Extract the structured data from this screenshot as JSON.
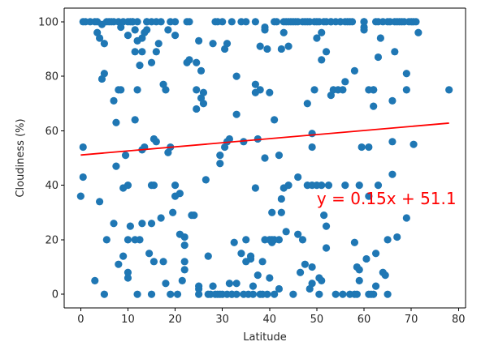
{
  "chart_data": {
    "type": "scatter",
    "title": "",
    "xlabel": "Latitude",
    "ylabel": "Cloudiness (%)",
    "xlim": [
      -3.5,
      81.5
    ],
    "ylim": [
      -5,
      105
    ],
    "xticks": [
      0,
      10,
      20,
      30,
      40,
      50,
      60,
      70,
      80
    ],
    "yticks": [
      0,
      20,
      40,
      60,
      80,
      100
    ],
    "grid": false,
    "colors": {
      "points": "#1f77b4",
      "regression": "#ff0000",
      "annotation": "#ff0000",
      "axes": "#000000"
    },
    "series": [
      {
        "points": [
          [
            0,
            36
          ],
          [
            0.5,
            43
          ],
          [
            0.5,
            54
          ],
          [
            0.5,
            100
          ],
          [
            1,
            100
          ],
          [
            2,
            100
          ],
          [
            3,
            100
          ],
          [
            3,
            5
          ],
          [
            3.5,
            100
          ],
          [
            3.5,
            96
          ],
          [
            4,
            94
          ],
          [
            4,
            34
          ],
          [
            4.5,
            99
          ],
          [
            4.5,
            79
          ],
          [
            5,
            81
          ],
          [
            5,
            0
          ],
          [
            5,
            92
          ],
          [
            5.5,
            20
          ],
          [
            5.5,
            100
          ],
          [
            6,
            100
          ],
          [
            6.5,
            100
          ],
          [
            7,
            71
          ],
          [
            7,
            26
          ],
          [
            7,
            100
          ],
          [
            7.5,
            47
          ],
          [
            7.5,
            63
          ],
          [
            8,
            11
          ],
          [
            8,
            75
          ],
          [
            8,
            100
          ],
          [
            8.5,
            98
          ],
          [
            8.5,
            75
          ],
          [
            9,
            100
          ],
          [
            9,
            14
          ],
          [
            9,
            39
          ],
          [
            9.5,
            51
          ],
          [
            10,
            6
          ],
          [
            10,
            8
          ],
          [
            10,
            40
          ],
          [
            10,
            20
          ],
          [
            10,
            95
          ],
          [
            10,
            100
          ],
          [
            10.5,
            100
          ],
          [
            10.5,
            25
          ],
          [
            11,
            100
          ],
          [
            11,
            100
          ],
          [
            11.5,
            64
          ],
          [
            11.5,
            97
          ],
          [
            11.5,
            89
          ],
          [
            11.5,
            20
          ],
          [
            12,
            0
          ],
          [
            12,
            75
          ],
          [
            12,
            93
          ],
          [
            12,
            100
          ],
          [
            12.5,
            20
          ],
          [
            12.5,
            84
          ],
          [
            13,
            94
          ],
          [
            13,
            26
          ],
          [
            13,
            53
          ],
          [
            13,
            89
          ],
          [
            13.5,
            54
          ],
          [
            13.5,
            96
          ],
          [
            14,
            97
          ],
          [
            14,
            100
          ],
          [
            14,
            100
          ],
          [
            14.5,
            15
          ],
          [
            15,
            26
          ],
          [
            15,
            40
          ],
          [
            15,
            0
          ],
          [
            15,
            85
          ],
          [
            15,
            100
          ],
          [
            15.5,
            57
          ],
          [
            15.5,
            12
          ],
          [
            15.5,
            40
          ],
          [
            16,
            56
          ],
          [
            16,
            89
          ],
          [
            16,
            100
          ],
          [
            16.5,
            92
          ],
          [
            17,
            100
          ],
          [
            17,
            28
          ],
          [
            17.5,
            77
          ],
          [
            17.5,
            12
          ],
          [
            18,
            75
          ],
          [
            18,
            4
          ],
          [
            18.5,
            52
          ],
          [
            18.5,
            97
          ],
          [
            19,
            54
          ],
          [
            19,
            0
          ],
          [
            19,
            100
          ],
          [
            19.5,
            30
          ],
          [
            20,
            36
          ],
          [
            20,
            40
          ],
          [
            20,
            95
          ],
          [
            20,
            100
          ],
          [
            20.5,
            0
          ],
          [
            21,
            22
          ],
          [
            21,
            37
          ],
          [
            21.5,
            5
          ],
          [
            22,
            21
          ],
          [
            22,
            18
          ],
          [
            22,
            12
          ],
          [
            22,
            9
          ],
          [
            22.5,
            85
          ],
          [
            22.5,
            100
          ],
          [
            23,
            86
          ],
          [
            23,
            100
          ],
          [
            23.5,
            29
          ],
          [
            24,
            29
          ],
          [
            24.5,
            68
          ],
          [
            24.5,
            75
          ],
          [
            24.5,
            85
          ],
          [
            25,
            0
          ],
          [
            25,
            2
          ],
          [
            25,
            3
          ],
          [
            25,
            93
          ],
          [
            25.5,
            82
          ],
          [
            25.5,
            72
          ],
          [
            26,
            74
          ],
          [
            26,
            70
          ],
          [
            26.5,
            42
          ],
          [
            27,
            14
          ],
          [
            27,
            0
          ],
          [
            27.5,
            0
          ],
          [
            28,
            3
          ],
          [
            28,
            92
          ],
          [
            28.5,
            0
          ],
          [
            28.5,
            100
          ],
          [
            29,
            0
          ],
          [
            29,
            100
          ],
          [
            29.5,
            48
          ],
          [
            29.5,
            51
          ],
          [
            29.5,
            0
          ],
          [
            30,
            100
          ],
          [
            30,
            0
          ],
          [
            30.5,
            54
          ],
          [
            30.5,
            90
          ],
          [
            31,
            0
          ],
          [
            31,
            56
          ],
          [
            31,
            92
          ],
          [
            31.5,
            57
          ],
          [
            31.5,
            4
          ],
          [
            32,
            0
          ],
          [
            32,
            100
          ],
          [
            32,
            0
          ],
          [
            32.5,
            19
          ],
          [
            33,
            80
          ],
          [
            33,
            66
          ],
          [
            33,
            4
          ],
          [
            33,
            0
          ],
          [
            34,
            15
          ],
          [
            34,
            100
          ],
          [
            34.5,
            0
          ],
          [
            34.5,
            56
          ],
          [
            35,
            20
          ],
          [
            35,
            12
          ],
          [
            35,
            100
          ],
          [
            35.5,
            0
          ],
          [
            36,
            13
          ],
          [
            36,
            14
          ],
          [
            36.5,
            0
          ],
          [
            36.5,
            3
          ],
          [
            37,
            77
          ],
          [
            37,
            74
          ],
          [
            37,
            39
          ],
          [
            37,
            100
          ],
          [
            37.5,
            7
          ],
          [
            37.5,
            57
          ],
          [
            38,
            0
          ],
          [
            38,
            75
          ],
          [
            38,
            91
          ],
          [
            38.5,
            12
          ],
          [
            38.5,
            0
          ],
          [
            39,
            97
          ],
          [
            39,
            98
          ],
          [
            39,
            20
          ],
          [
            39,
            50
          ],
          [
            39.5,
            0
          ],
          [
            39.5,
            90
          ],
          [
            40,
            74
          ],
          [
            40,
            20
          ],
          [
            40,
            6
          ],
          [
            40.5,
            30
          ],
          [
            40.5,
            19
          ],
          [
            40.5,
            20
          ],
          [
            41,
            64
          ],
          [
            41,
            0
          ],
          [
            41,
            20
          ],
          [
            41,
            100
          ],
          [
            41.5,
            100
          ],
          [
            42,
            20
          ],
          [
            42,
            51
          ],
          [
            42,
            2
          ],
          [
            42.5,
            30
          ],
          [
            42.5,
            35
          ],
          [
            42.5,
            90
          ],
          [
            43,
            96
          ],
          [
            43,
            100
          ],
          [
            43,
            39
          ],
          [
            43.5,
            23
          ],
          [
            43.5,
            100
          ],
          [
            44,
            91
          ],
          [
            44,
            40
          ],
          [
            44,
            100
          ],
          [
            44.5,
            100
          ],
          [
            45,
            0
          ],
          [
            45,
            100
          ],
          [
            45.5,
            100
          ],
          [
            46,
            22
          ],
          [
            46,
            43
          ],
          [
            46,
            100
          ],
          [
            46.5,
            8
          ],
          [
            47,
            100
          ],
          [
            47,
            20
          ],
          [
            47.5,
            100
          ],
          [
            47.5,
            11
          ],
          [
            48,
            40
          ],
          [
            48,
            70
          ],
          [
            48,
            100
          ],
          [
            48.5,
            2
          ],
          [
            48.5,
            100
          ],
          [
            49,
            40
          ],
          [
            49,
            4
          ],
          [
            49,
            54
          ],
          [
            49,
            59
          ],
          [
            49,
            10
          ],
          [
            49.5,
            75
          ],
          [
            49.5,
            100
          ],
          [
            50,
            100
          ],
          [
            50,
            40
          ],
          [
            50,
            94
          ],
          [
            50.5,
            100
          ],
          [
            50.5,
            6
          ],
          [
            50.5,
            0
          ],
          [
            51,
            86
          ],
          [
            51,
            96
          ],
          [
            51,
            40
          ],
          [
            51,
            5
          ],
          [
            51.5,
            100
          ],
          [
            51.5,
            29
          ],
          [
            52,
            17
          ],
          [
            52,
            89
          ],
          [
            52,
            25
          ],
          [
            52,
            100
          ],
          [
            52.5,
            40
          ],
          [
            53,
            100
          ],
          [
            53,
            100
          ],
          [
            53,
            73
          ],
          [
            53.5,
            75
          ],
          [
            54,
            100
          ],
          [
            54,
            0
          ],
          [
            54.5,
            75
          ],
          [
            55,
            100
          ],
          [
            55,
            100
          ],
          [
            55.5,
            0
          ],
          [
            55.5,
            75
          ],
          [
            56,
            78
          ],
          [
            56,
            40
          ],
          [
            56,
            100
          ],
          [
            56.5,
            100
          ],
          [
            57,
            0
          ],
          [
            57,
            100
          ],
          [
            57.5,
            100
          ],
          [
            58,
            0
          ],
          [
            58,
            82
          ],
          [
            58,
            19
          ],
          [
            58.5,
            0
          ],
          [
            58.5,
            10
          ],
          [
            59,
            9
          ],
          [
            59,
            5
          ],
          [
            59,
            40
          ],
          [
            59.5,
            54
          ],
          [
            60,
            100
          ],
          [
            60,
            97
          ],
          [
            60,
            98
          ],
          [
            60,
            100
          ],
          [
            60.5,
            13
          ],
          [
            61,
            75
          ],
          [
            61,
            0
          ],
          [
            61,
            36
          ],
          [
            61,
            54
          ],
          [
            61.5,
            0
          ],
          [
            62,
            75
          ],
          [
            62,
            69
          ],
          [
            62,
            0
          ],
          [
            62,
            75
          ],
          [
            62.5,
            100
          ],
          [
            62.5,
            3
          ],
          [
            62.5,
            15
          ],
          [
            63,
            87
          ],
          [
            63,
            100
          ],
          [
            63,
            40
          ],
          [
            63.5,
            94
          ],
          [
            64,
            100
          ],
          [
            64,
            8
          ],
          [
            64.5,
            7
          ],
          [
            65,
            20
          ],
          [
            65,
            0
          ],
          [
            65,
            100
          ],
          [
            65.5,
            100
          ],
          [
            66,
            56
          ],
          [
            66,
            71
          ],
          [
            66,
            44
          ],
          [
            66.5,
            89
          ],
          [
            66.5,
            100
          ],
          [
            67,
            21
          ],
          [
            67,
            100
          ],
          [
            67.5,
            100
          ],
          [
            68,
            100
          ],
          [
            68.5,
            100
          ],
          [
            69,
            75
          ],
          [
            69,
            28
          ],
          [
            69,
            81
          ],
          [
            69.5,
            100
          ],
          [
            70,
            100
          ],
          [
            70.5,
            55
          ],
          [
            70.5,
            100
          ],
          [
            71,
            100
          ],
          [
            71.5,
            96
          ],
          [
            78,
            75
          ]
        ]
      }
    ],
    "regression": {
      "label": "y = 0.15x + 51.1",
      "slope": 0.15,
      "intercept": 51.1,
      "x_range": [
        0,
        78
      ],
      "label_anchor": [
        50,
        33
      ]
    }
  }
}
